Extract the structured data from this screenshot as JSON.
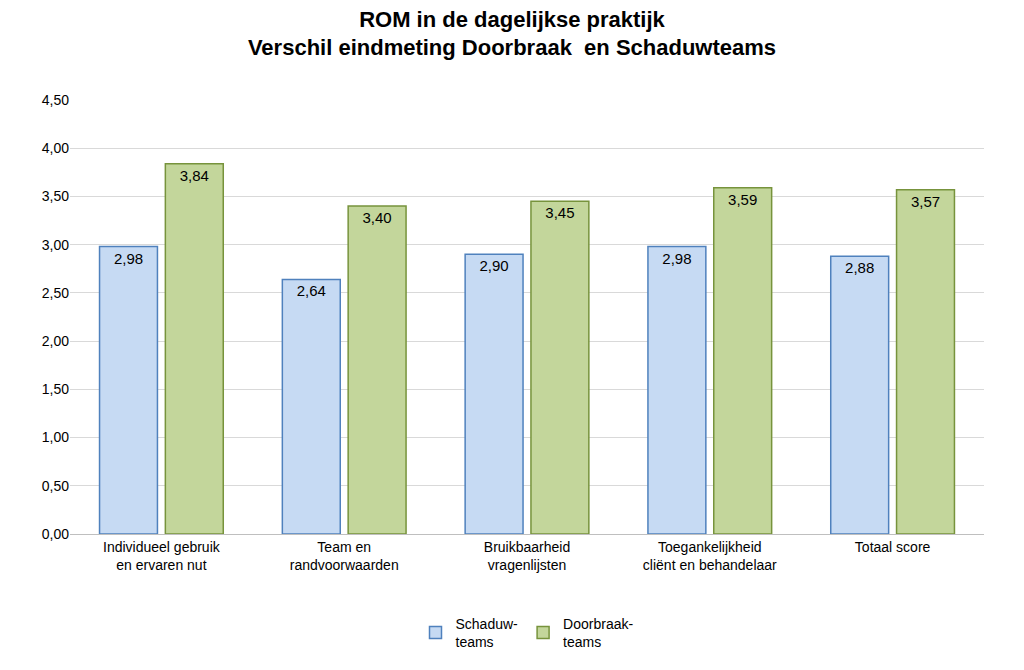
{
  "chart_data": {
    "type": "bar",
    "title": "ROM in de dagelijkse praktijk\nVerschil eindmeting Doorbraak  en Schaduwteams",
    "categories": [
      "Individueel gebruik\nen ervaren nut",
      "Team en\nrandvoorwaarden",
      "Bruikbaarheid\nvragenlijsten",
      "Toegankelijkheid\ncliënt en behandelaar",
      "Totaal score"
    ],
    "series": [
      {
        "name": "Schaduw-\nteams",
        "color": "#c6daf3",
        "values": [
          2.98,
          2.64,
          2.9,
          2.98,
          2.88
        ],
        "value_labels": [
          "2,98",
          "2,64",
          "2,90",
          "2,98",
          "2,88"
        ]
      },
      {
        "name": "Doorbraak-\nteams",
        "color": "#c3d69b",
        "values": [
          3.84,
          3.4,
          3.45,
          3.59,
          3.57
        ],
        "value_labels": [
          "3,84",
          "3,40",
          "3,45",
          "3,59",
          "3,57"
        ]
      }
    ],
    "ylim": [
      0,
      4.5
    ],
    "yticks": [
      {
        "value": 0,
        "label": "0,00"
      },
      {
        "value": 0.5,
        "label": "0,50"
      },
      {
        "value": 1,
        "label": "1,00"
      },
      {
        "value": 1.5,
        "label": "1,50"
      },
      {
        "value": 2,
        "label": "2,00"
      },
      {
        "value": 2.5,
        "label": "2,50"
      },
      {
        "value": 3,
        "label": "3,00"
      },
      {
        "value": 3.5,
        "label": "3,50"
      },
      {
        "value": 4,
        "label": "4,00"
      },
      {
        "value": 4.5,
        "label": "4,50"
      }
    ],
    "grid": true,
    "legend": "bottom",
    "data_labels": true
  }
}
